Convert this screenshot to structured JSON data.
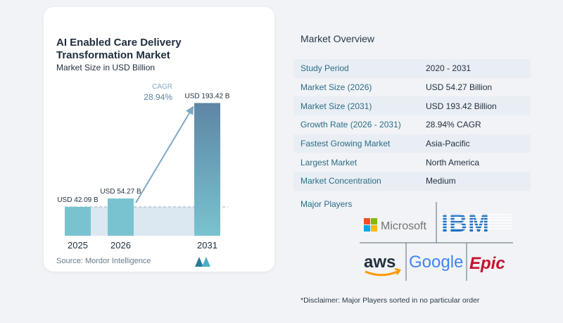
{
  "chart_data": {
    "type": "bar",
    "title": "AI Enabled Care Delivery Transformation Market",
    "subtitle": "Market Size in USD Billion",
    "categories": [
      "2025",
      "2026",
      "2031"
    ],
    "values": [
      42.09,
      54.27,
      193.42
    ],
    "value_labels": [
      "USD 42.09 B",
      "USD 54.27 B",
      "USD 193.42 B"
    ],
    "cagr_label": "CAGR",
    "cagr_value": "28.94%",
    "ylim": [
      0,
      200
    ],
    "colors": {
      "bar_light": "#79c3d0",
      "bar_dark": "#5e86a5",
      "arrow": "#7fa8c4",
      "band": "#dbe7f1"
    }
  },
  "source": "Source: Mordor Intelligence",
  "overview": {
    "title": "Market Overview",
    "rows": [
      {
        "label": "Study Period",
        "value": "2020 - 2031"
      },
      {
        "label": "Market Size (2026)",
        "value": "USD 54.27 Billion"
      },
      {
        "label": "Market Size (2031)",
        "value": "USD 193.42 Billion"
      },
      {
        "label": "Growth Rate (2026 - 2031)",
        "value": "28.94% CAGR"
      },
      {
        "label": "Fastest Growing Market",
        "value": "Asia-Pacific"
      },
      {
        "label": "Largest Market",
        "value": "North America"
      },
      {
        "label": "Market Concentration",
        "value": "Medium"
      }
    ],
    "players_label": "Major Players",
    "players": [
      "Microsoft",
      "IBM",
      "aws",
      "Google",
      "Epic"
    ],
    "disclaimer": "*Disclaimer: Major Players sorted in no particular order"
  }
}
